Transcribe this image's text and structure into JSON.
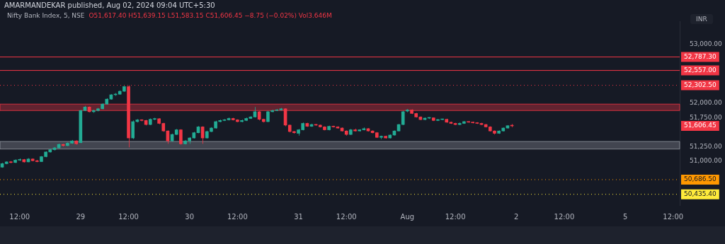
{
  "chart_data": {
    "type": "candlestick",
    "title": "Nifty Bank Index, 5, NSE",
    "subtitle": "O51,617.40 H51,639.15 L51,583.15 C51,606.45 −8.75 (−0.02%) Vol3.646M",
    "ylabel": "INR",
    "annotations": [
      "AMARMANDEKAR published, Aug 02, 2024 09:04 UTC+5:30",
      "51,606.45"
    ],
    "categories": [
      null,
      null,
      null,
      null,
      "12:00",
      null,
      null,
      null,
      null,
      null,
      null,
      null,
      null,
      null,
      null,
      null,
      null,
      null,
      "29",
      null,
      null,
      null,
      null,
      null,
      null,
      null,
      null,
      null,
      null,
      "12:00",
      null,
      null,
      null,
      null,
      null,
      null,
      null,
      null,
      null,
      null,
      null,
      null,
      null,
      "30",
      null,
      null,
      null,
      null,
      null,
      null,
      null,
      null,
      null,
      null,
      "12:00",
      null,
      null,
      null,
      null,
      null,
      null,
      null,
      null,
      null,
      null,
      null,
      null,
      null,
      "31",
      null,
      null,
      null,
      null,
      null,
      null,
      null,
      null,
      null,
      null,
      "12:00",
      null,
      null,
      null,
      null,
      null,
      null,
      null,
      null,
      null,
      null,
      null,
      null,
      null,
      "Aug",
      null,
      null,
      null,
      null,
      null,
      null,
      null,
      null,
      null,
      null,
      "12:00",
      null,
      null,
      null,
      null,
      null,
      null,
      null,
      null,
      null,
      null,
      null,
      null,
      null,
      "2",
      null,
      null,
      null,
      null,
      null,
      null,
      null,
      null,
      null,
      null,
      "12:00",
      null,
      null,
      null,
      null,
      null,
      null,
      null,
      null,
      null,
      null,
      null,
      null,
      null,
      "5",
      null,
      null,
      null,
      null,
      null,
      null,
      null,
      null,
      null,
      null,
      "12:00",
      null
    ],
    "ohlc": [
      [
        50900,
        50975,
        50890,
        50960
      ],
      [
        50960,
        51000,
        50950,
        50990
      ],
      [
        50990,
        51005,
        50965,
        50980
      ],
      [
        50980,
        51035,
        50970,
        51020
      ],
      [
        51020,
        51050,
        51005,
        51030
      ],
      [
        51030,
        51040,
        50980,
        50990
      ],
      [
        50990,
        51055,
        50985,
        51040
      ],
      [
        51040,
        51050,
        51000,
        51010
      ],
      [
        51010,
        51025,
        50985,
        50995
      ],
      [
        50995,
        51090,
        50990,
        51080
      ],
      [
        51080,
        51170,
        51070,
        51160
      ],
      [
        51160,
        51215,
        51150,
        51200
      ],
      [
        51200,
        51245,
        51185,
        51230
      ],
      [
        51230,
        51305,
        51220,
        51290
      ],
      [
        51290,
        51300,
        51255,
        51270
      ],
      [
        51270,
        51325,
        51260,
        51310
      ],
      [
        51310,
        51365,
        51300,
        51350
      ],
      [
        51350,
        51360,
        51285,
        51300
      ],
      [
        51320,
        51880,
        51310,
        51870
      ],
      [
        51870,
        51950,
        51860,
        51930
      ],
      [
        51930,
        51940,
        51840,
        51850
      ],
      [
        51850,
        51885,
        51830,
        51870
      ],
      [
        51870,
        51915,
        51855,
        51900
      ],
      [
        51900,
        51995,
        51890,
        51980
      ],
      [
        51980,
        52080,
        51970,
        52065
      ],
      [
        52065,
        52150,
        52055,
        52140
      ],
      [
        52140,
        52170,
        52120,
        52150
      ],
      [
        52150,
        52215,
        52140,
        52200
      ],
      [
        52200,
        52290,
        52190,
        52280
      ],
      [
        52280,
        52302.5,
        51240,
        51400
      ],
      [
        51400,
        51700,
        51380,
        51680
      ],
      [
        51680,
        51725,
        51665,
        51710
      ],
      [
        51710,
        51720,
        51685,
        51700
      ],
      [
        51700,
        51710,
        51615,
        51630
      ],
      [
        51630,
        51735,
        51620,
        51720
      ],
      [
        51720,
        51745,
        51705,
        51730
      ],
      [
        51730,
        51740,
        51635,
        51650
      ],
      [
        51650,
        51660,
        51505,
        51520
      ],
      [
        51520,
        51530,
        51300,
        51350
      ],
      [
        51350,
        51475,
        51335,
        51460
      ],
      [
        51460,
        51555,
        51450,
        51540
      ],
      [
        51540,
        51550,
        51285,
        51300
      ],
      [
        51300,
        51365,
        51290,
        51350
      ],
      [
        51350,
        51415,
        51300,
        51400
      ],
      [
        51400,
        51505,
        51390,
        51490
      ],
      [
        51490,
        51605,
        51480,
        51590
      ],
      [
        51590,
        51600,
        51300,
        51400
      ],
      [
        51400,
        51525,
        51390,
        51510
      ],
      [
        51510,
        51585,
        51500,
        51570
      ],
      [
        51570,
        51695,
        51560,
        51680
      ],
      [
        51680,
        51715,
        51670,
        51700
      ],
      [
        51700,
        51725,
        51690,
        51710
      ],
      [
        51710,
        51750,
        51700,
        51735
      ],
      [
        51735,
        51745,
        51700,
        51710
      ],
      [
        51710,
        51720,
        51670,
        51680
      ],
      [
        51680,
        51715,
        51670,
        51700
      ],
      [
        51700,
        51750,
        51690,
        51735
      ],
      [
        51735,
        51775,
        51725,
        51760
      ],
      [
        51760,
        51930,
        51750,
        51850
      ],
      [
        51850,
        51860,
        51700,
        51720
      ],
      [
        51720,
        51730,
        51665,
        51680
      ],
      [
        51680,
        51865,
        51670,
        51850
      ],
      [
        51850,
        51885,
        51840,
        51870
      ],
      [
        51870,
        51895,
        51860,
        51880
      ],
      [
        51880,
        51915,
        51870,
        51900
      ],
      [
        51900,
        51910,
        51600,
        51620
      ],
      [
        51620,
        51630,
        51495,
        51510
      ],
      [
        51510,
        51520,
        51475,
        51490
      ],
      [
        51480,
        51555,
        51440,
        51540
      ],
      [
        51540,
        51665,
        51530,
        51650
      ],
      [
        51650,
        51660,
        51590,
        51600
      ],
      [
        51600,
        51645,
        51590,
        51630
      ],
      [
        51630,
        51640,
        51610,
        51620
      ],
      [
        51620,
        51630,
        51580,
        51590
      ],
      [
        51590,
        51600,
        51530,
        51540
      ],
      [
        51540,
        51610,
        51530,
        51600
      ],
      [
        51600,
        51610,
        51580,
        51590
      ],
      [
        51590,
        51600,
        51560,
        51570
      ],
      [
        51570,
        51580,
        51510,
        51520
      ],
      [
        51520,
        51530,
        51440,
        51460
      ],
      [
        51460,
        51555,
        51450,
        51540
      ],
      [
        51540,
        51560,
        51510,
        51520
      ],
      [
        51520,
        51550,
        51510,
        51540
      ],
      [
        51540,
        51580,
        51530,
        51560
      ],
      [
        51560,
        51570,
        51510,
        51520
      ],
      [
        51520,
        51530,
        51480,
        51490
      ],
      [
        51490,
        51500,
        51400,
        51410
      ],
      [
        51410,
        51440,
        51380,
        51430
      ],
      [
        51430,
        51440,
        51390,
        51400
      ],
      [
        51400,
        51460,
        51390,
        51450
      ],
      [
        51450,
        51530,
        51440,
        51520
      ],
      [
        51520,
        51640,
        51510,
        51630
      ],
      [
        51630,
        51865,
        51620,
        51850
      ],
      [
        51860,
        51895,
        51840,
        51880
      ],
      [
        51880,
        51890,
        51810,
        51820
      ],
      [
        51820,
        51830,
        51750,
        51760
      ],
      [
        51760,
        51770,
        51705,
        51715
      ],
      [
        51715,
        51750,
        51705,
        51740
      ],
      [
        51740,
        51755,
        51725,
        51745
      ],
      [
        51745,
        51750,
        51690,
        51700
      ],
      [
        51700,
        51725,
        51690,
        51715
      ],
      [
        51715,
        51730,
        51705,
        51720
      ],
      [
        51720,
        51730,
        51660,
        51670
      ],
      [
        51670,
        51680,
        51640,
        51650
      ],
      [
        51650,
        51660,
        51620,
        51630
      ],
      [
        51630,
        51665,
        51620,
        51650
      ],
      [
        51650,
        51690,
        51640,
        51680
      ],
      [
        51680,
        51690,
        51660,
        51670
      ],
      [
        51670,
        51680,
        51650,
        51660
      ],
      [
        51660,
        51670,
        51640,
        51650
      ],
      [
        51650,
        51660,
        51620,
        51630
      ],
      [
        51630,
        51640,
        51580,
        51590
      ],
      [
        51590,
        51600,
        51510,
        51520
      ],
      [
        51520,
        51530,
        51460,
        51480
      ],
      [
        51480,
        51530,
        51470,
        51520
      ],
      [
        51520,
        51580,
        51510,
        51570
      ],
      [
        51570,
        51620,
        51560,
        51610
      ],
      [
        51617.4,
        51639.15,
        51583.15,
        51606.45
      ],
      null,
      null,
      null,
      null,
      null,
      null,
      null,
      null,
      null,
      null,
      null,
      null,
      null,
      null,
      null,
      null,
      null,
      null,
      null,
      null,
      null,
      null,
      null,
      null,
      null,
      null,
      null,
      null,
      null,
      null,
      null,
      null,
      null,
      null,
      null,
      null,
      null,
      null
    ],
    "ylim": [
      50250,
      53400
    ],
    "yticks": [
      {
        "value": 51000,
        "label": "51,000.00"
      },
      {
        "value": 51250,
        "label": "51,250.00"
      },
      {
        "value": 51750,
        "label": "51,750.00"
      },
      {
        "value": 52000,
        "label": "52,000.00"
      },
      {
        "value": 53000,
        "label": "53,000.00"
      }
    ],
    "ref_lines": [
      {
        "axis": "y",
        "value": 52787.3,
        "label": "52,787.30",
        "color": "#f23645",
        "line_style": "solid"
      },
      {
        "axis": "y",
        "value": 52557,
        "label": "52,557.00",
        "color": "#f23645",
        "line_style": "solid"
      },
      {
        "axis": "y",
        "value": 52302.5,
        "label": "52,302.50",
        "color": "#f23645",
        "line_style": "dotted"
      },
      {
        "axis": "y",
        "value": 50686.5,
        "label": "50,686.50",
        "color": "#ff9800",
        "line_style": "dotted"
      },
      {
        "axis": "y",
        "value": 50435.4,
        "label": "50,435.40",
        "color": "#ffeb3b",
        "line_style": "dotted"
      }
    ],
    "bands": [
      {
        "axis": "y",
        "from": 51870,
        "to": 51980,
        "color": "#f23645"
      },
      {
        "axis": "y",
        "from": 51210,
        "to": 51340,
        "color": "#9598a1"
      }
    ]
  }
}
